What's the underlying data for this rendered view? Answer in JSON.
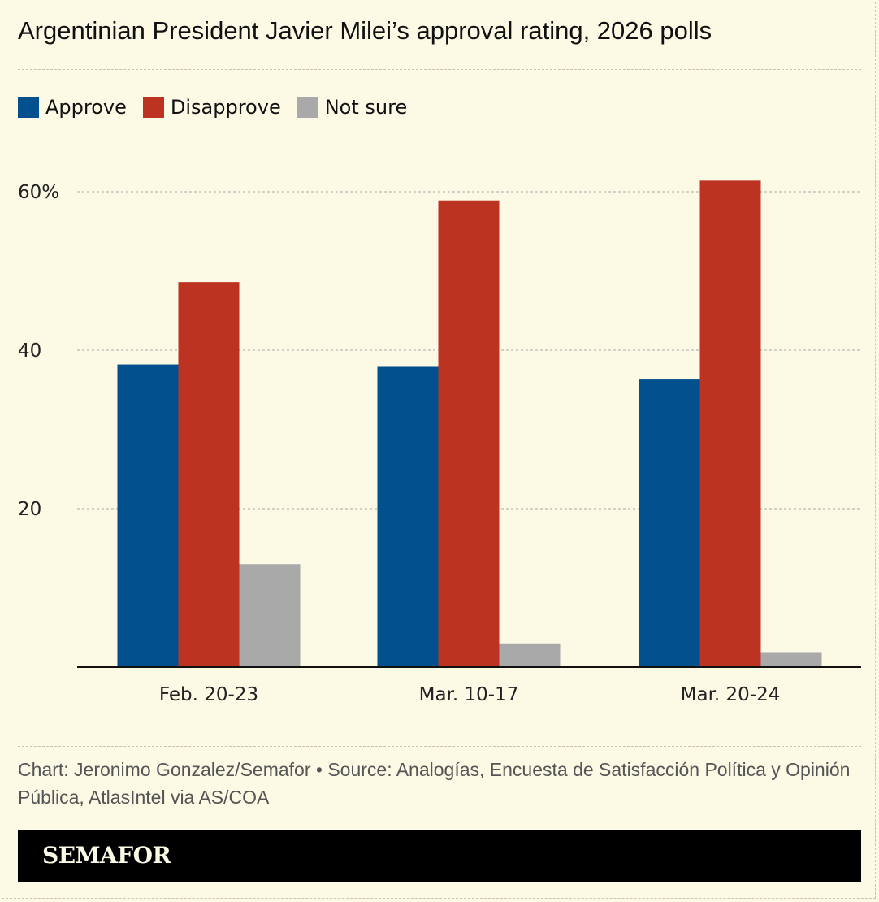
{
  "title": "Argentinian President Javier Milei’s approval rating, 2026 polls",
  "chart_data": {
    "type": "bar",
    "categories": [
      "Feb. 20-23",
      "Mar. 10-17",
      "Mar. 20-24"
    ],
    "series": [
      {
        "name": "Approve",
        "color": "#02508e",
        "values": [
          38.2,
          37.9,
          36.3
        ]
      },
      {
        "name": "Disapprove",
        "color": "#bc3322",
        "values": [
          48.6,
          58.9,
          61.4
        ]
      },
      {
        "name": "Not sure",
        "color": "#a9a9a9",
        "values": [
          13.0,
          3.0,
          1.9
        ]
      }
    ],
    "yticks": [
      {
        "value": 20,
        "label": "20"
      },
      {
        "value": 40,
        "label": "40"
      },
      {
        "value": 60,
        "label": "60%"
      }
    ],
    "ylim": [
      0,
      65
    ],
    "grid": true,
    "legend": "top-left"
  },
  "footer": {
    "source": "Chart: Jeronimo Gonzalez/Semafor • Source: Analogías, Encuesta de Satisfacción Política y Opinión Pública, AtlasIntel via AS/COA",
    "brand": "SEMAFOR"
  }
}
